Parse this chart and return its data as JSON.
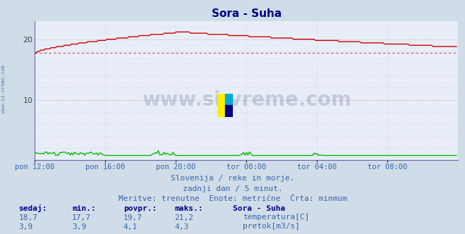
{
  "title": "Sora - Suha",
  "title_color": "#000080",
  "bg_color": "#d0dce8",
  "plot_bg_color": "#e8eef8",
  "grid_color": "#c8b8c8",
  "grid_dotted_color": "#e8a8a8",
  "xlim": [
    0,
    288
  ],
  "ylim": [
    0,
    23
  ],
  "ytick_positions": [
    10,
    20
  ],
  "ytick_labels": [
    "10",
    "20"
  ],
  "xtick_labels": [
    "pon 12:00",
    "pon 16:00",
    "pon 20:00",
    "tor 00:00",
    "tor 04:00",
    "tor 08:00"
  ],
  "xtick_positions": [
    0,
    48,
    96,
    144,
    192,
    240
  ],
  "temp_min": 17.7,
  "temp_max": 21.2,
  "temp_avg": 19.7,
  "temp_current": 18.7,
  "pretok_min": 3.9,
  "pretok_max": 4.3,
  "pretok_avg": 4.1,
  "pretok_current": 3.9,
  "temp_color": "#cc0000",
  "pretok_color": "#00bb00",
  "min_line_color": "#dd4444",
  "watermark_text": "www.si-vreme.com",
  "watermark_color": "#1a3060",
  "watermark_alpha": 0.18,
  "logo_colors": [
    "#ffee00",
    "#00aadd",
    "#000088"
  ],
  "subtitle1": "Slovenija / reke in morje.",
  "subtitle2": "zadnji dan / 5 minut.",
  "subtitle3": "Meritve: trenutne  Enote: metrične  Črta: minmum",
  "subtitle_color": "#3366aa",
  "legend_title": "Sora - Suha",
  "left_label": "www.si-vreme.com",
  "left_label_color": "#3366aa",
  "axis_color": "#6666aa",
  "arrow_color": "#cc0000"
}
